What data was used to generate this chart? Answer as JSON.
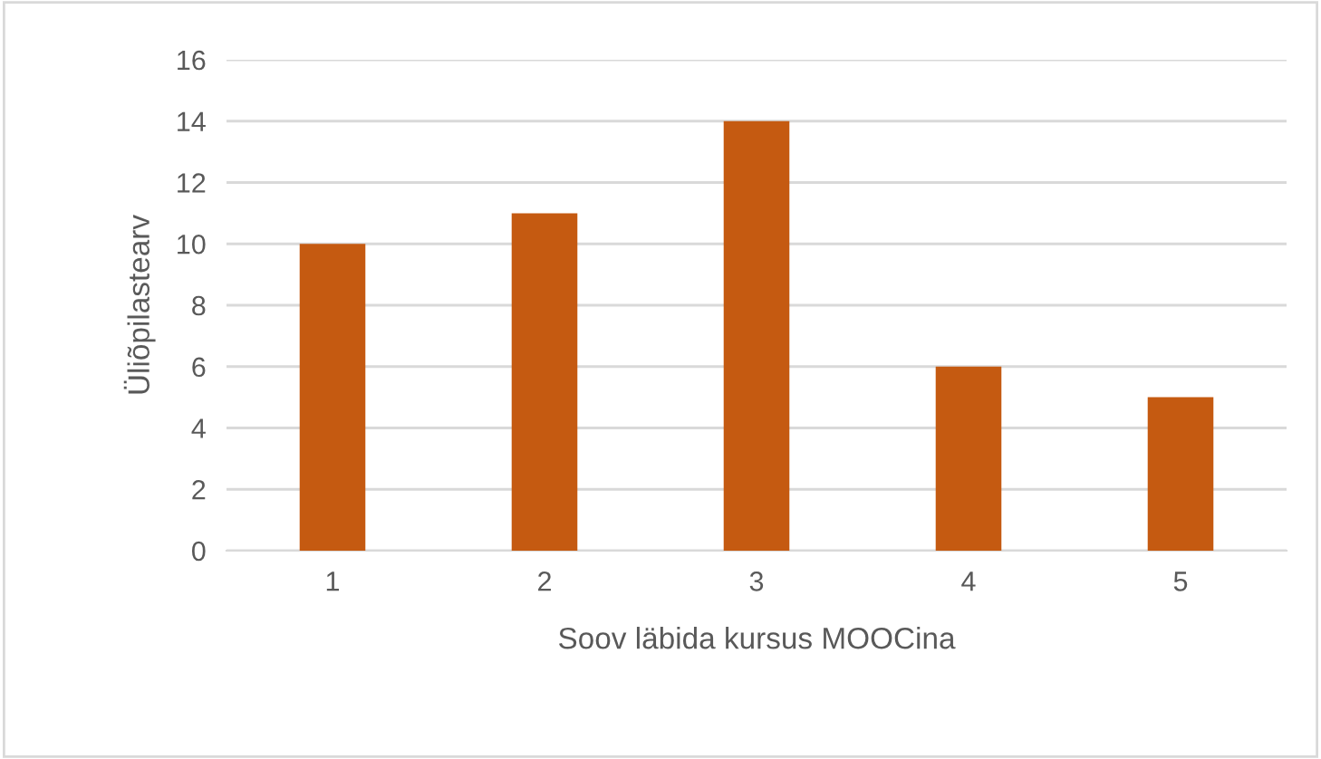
{
  "chart_data": {
    "type": "bar",
    "xlabel": "Soov läbida kursus MOOCina",
    "ylabel": "Üliõpilastearv",
    "categories": [
      "1",
      "2",
      "3",
      "4",
      "5"
    ],
    "values": [
      10,
      11,
      14,
      6,
      5
    ],
    "color": "#c55a11",
    "ylim": [
      0,
      16
    ],
    "yticks": [
      0,
      2,
      4,
      6,
      8,
      10,
      12,
      14,
      16
    ],
    "grid": "y",
    "legend": false
  }
}
